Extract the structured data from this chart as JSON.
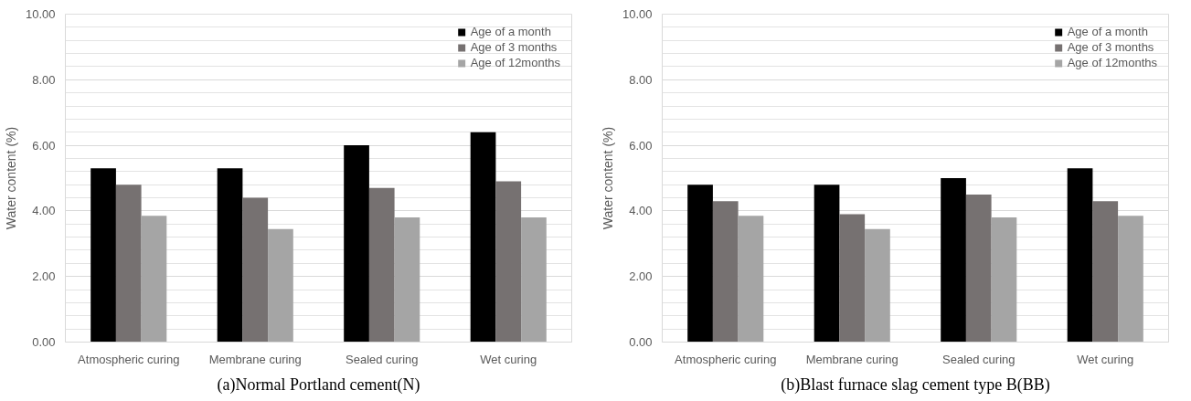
{
  "chart_data": [
    {
      "type": "bar",
      "title": "(a)Normal Portland cement(N)",
      "ylabel": "Water content (%)",
      "categories": [
        "Atmospheric curing",
        "Membrane curing",
        "Sealed curing",
        "Wet curing"
      ],
      "series": [
        {
          "name": "Age of a month",
          "color": "#000000",
          "values": [
            5.3,
            5.3,
            6.0,
            6.4
          ]
        },
        {
          "name": "Age of 3 months",
          "color": "#767171",
          "values": [
            4.8,
            4.4,
            4.7,
            4.9
          ]
        },
        {
          "name": "Age of 12months",
          "color": "#a5a5a5",
          "values": [
            3.85,
            3.45,
            3.8,
            3.8
          ]
        }
      ],
      "ylim": [
        0,
        10
      ],
      "yticks": [
        {
          "value": 0,
          "label": "0.00"
        },
        {
          "value": 2,
          "label": "2.00"
        },
        {
          "value": 4,
          "label": "4.00"
        },
        {
          "value": 6,
          "label": "6.00"
        },
        {
          "value": 8,
          "label": "8.00"
        },
        {
          "value": 10,
          "label": "10.00"
        }
      ],
      "grid": "y",
      "legend": "top right"
    },
    {
      "type": "bar",
      "title": "(b)Blast furnace slag cement type B(BB)",
      "ylabel": "Water content (%)",
      "categories": [
        "Atmospheric curing",
        "Membrane curing",
        "Sealed curing",
        "Wet curing"
      ],
      "series": [
        {
          "name": "Age of a month",
          "color": "#000000",
          "values": [
            4.8,
            4.8,
            5.0,
            5.3
          ]
        },
        {
          "name": "Age of 3 months",
          "color": "#767171",
          "values": [
            4.3,
            3.9,
            4.5,
            4.3
          ]
        },
        {
          "name": "Age of 12months",
          "color": "#a5a5a5",
          "values": [
            3.85,
            3.45,
            3.8,
            3.85
          ]
        }
      ],
      "ylim": [
        0,
        10
      ],
      "yticks": [
        {
          "value": 0,
          "label": "0.00"
        },
        {
          "value": 2,
          "label": "2.00"
        },
        {
          "value": 4,
          "label": "4.00"
        },
        {
          "value": 6,
          "label": "6.00"
        },
        {
          "value": 8,
          "label": "8.00"
        },
        {
          "value": 10,
          "label": "10.00"
        }
      ],
      "grid": "y",
      "legend": "top right"
    }
  ]
}
